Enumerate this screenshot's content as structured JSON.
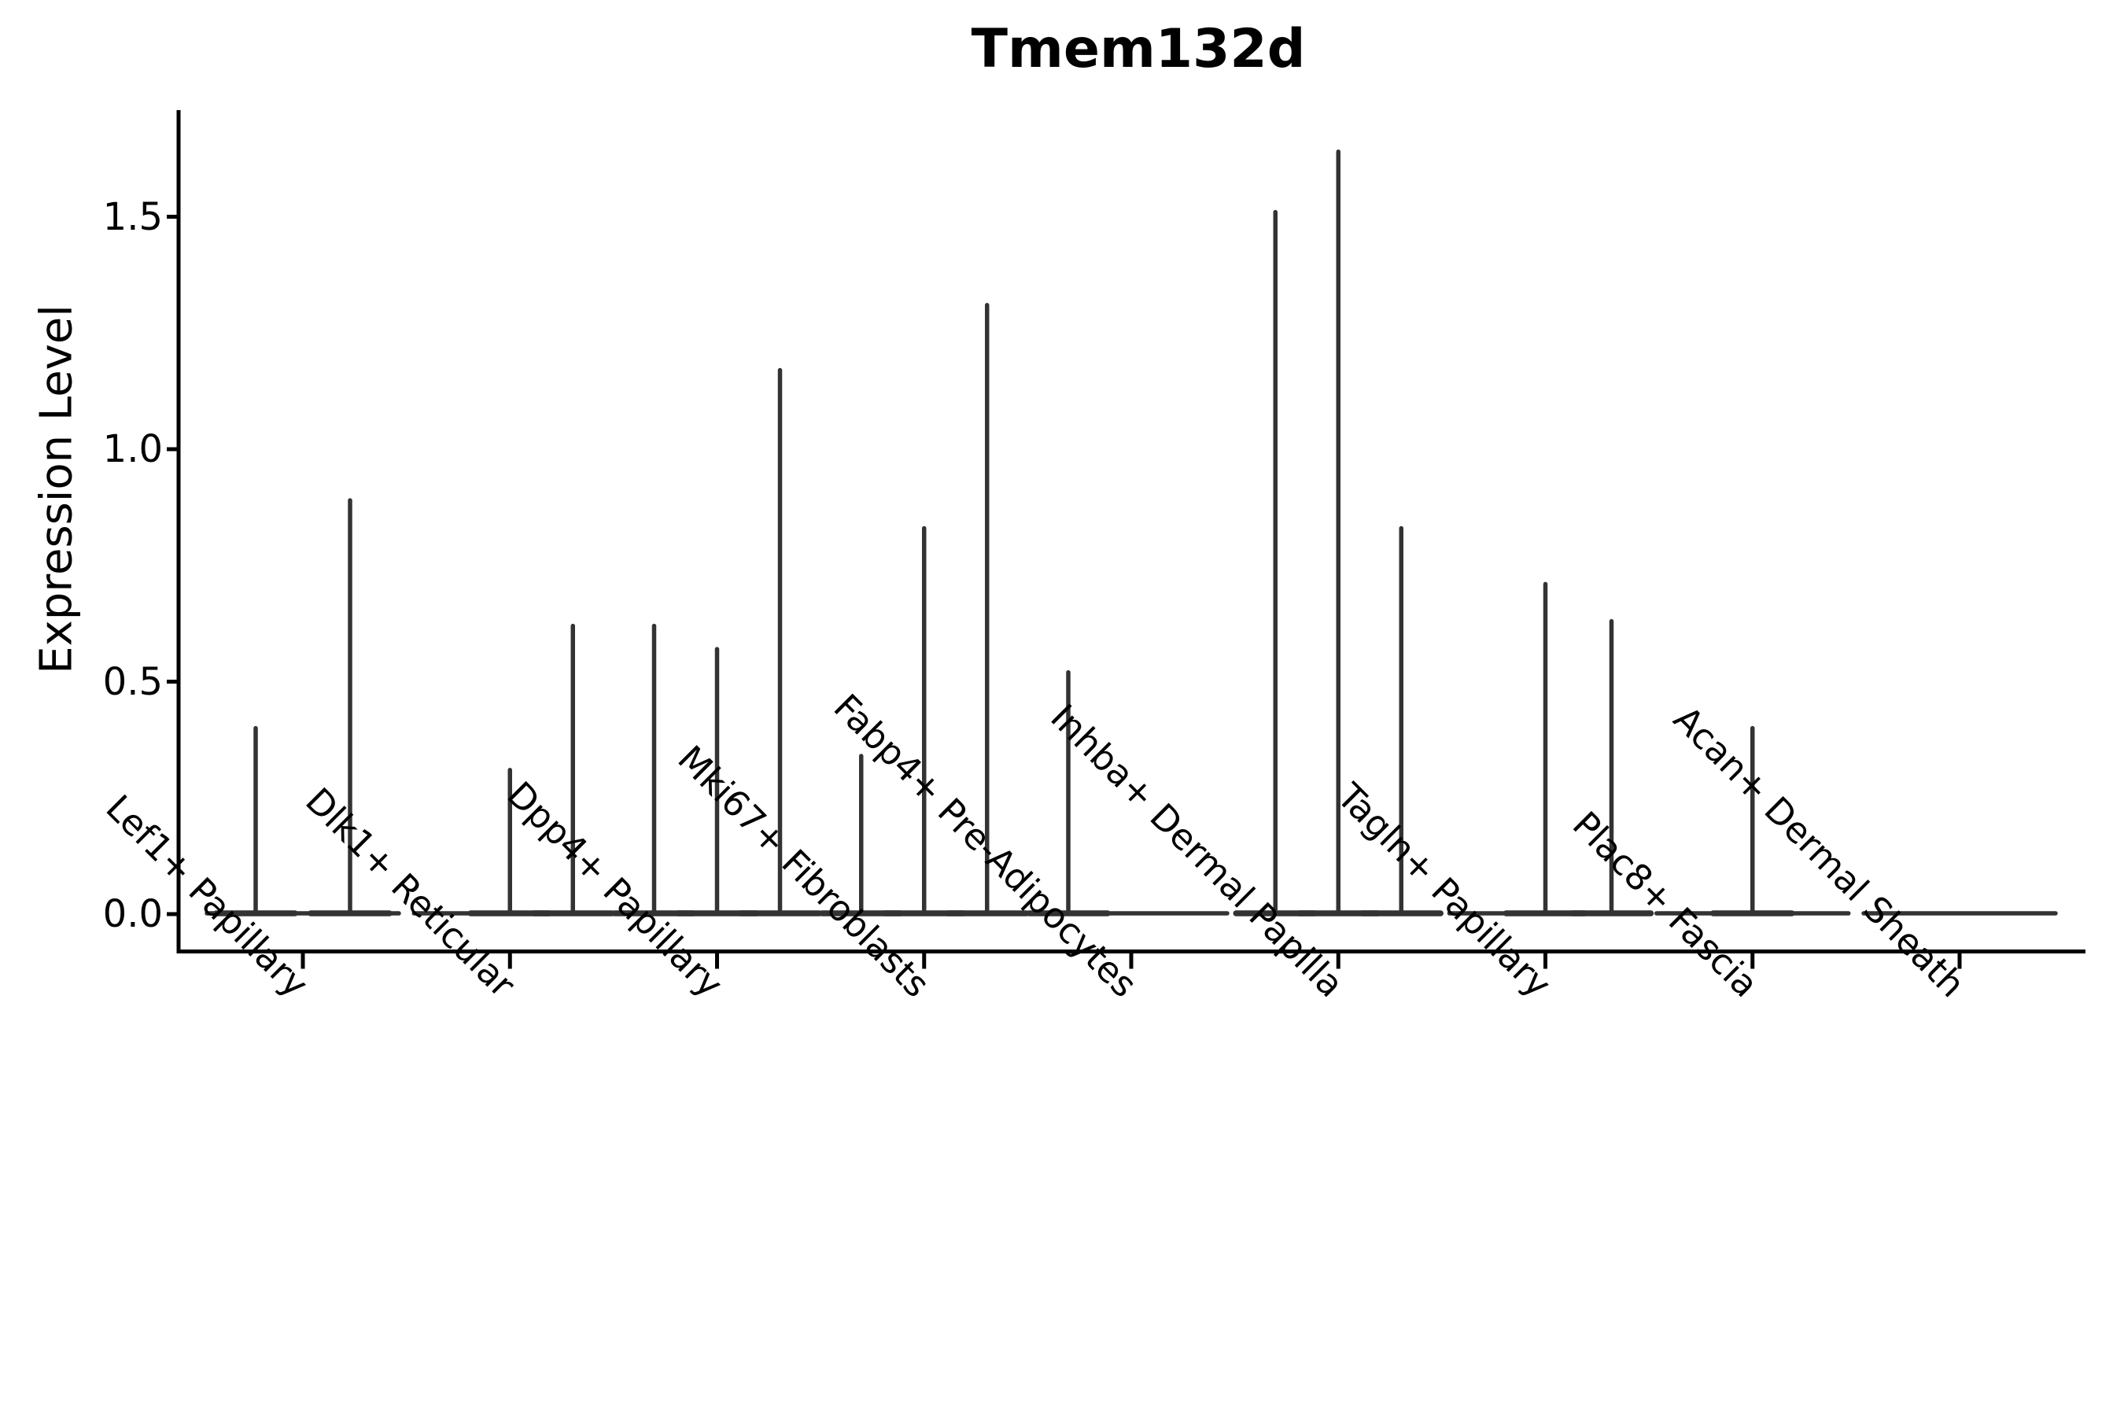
{
  "chart_data": {
    "type": "violin",
    "title": "Tmem132d",
    "ylabel": "Expression Level",
    "xlabel": "",
    "legend": null,
    "grid": false,
    "background_color": "#ffffff",
    "violin_color": "#333333",
    "axis_color": "#000000",
    "ylim": [
      0.0,
      1.73
    ],
    "yticks": [
      {
        "label": "0.0",
        "value": 0.0
      },
      {
        "label": "0.5",
        "value": 0.5
      },
      {
        "label": "1.0",
        "value": 1.0
      },
      {
        "label": "1.5",
        "value": 1.5
      }
    ],
    "x_axis_note": "9 cell-type categories; each contains 1-3 collapsed sub-violins (flat base at 0 with a thin spike to the group max expression)",
    "categories": [
      {
        "label": "Lef1+ Papillary",
        "violins": [
          {
            "offset": -60,
            "max": 0.4
          },
          {
            "offset": 60,
            "max": 0.89
          }
        ]
      },
      {
        "label": "Dlk1+ Reticular",
        "violins": [
          {
            "offset": 0,
            "max": 0.31
          },
          {
            "offset": 80,
            "max": 0.62
          }
        ]
      },
      {
        "label": "Dpp4+ Papillary",
        "violins": [
          {
            "offset": -80,
            "max": 0.62
          },
          {
            "offset": 0,
            "max": 0.57
          },
          {
            "offset": 80,
            "max": 1.17
          }
        ]
      },
      {
        "label": "Mki67+ Fibroblasts",
        "violins": [
          {
            "offset": -80,
            "max": 0.34
          },
          {
            "offset": 0,
            "max": 0.83
          },
          {
            "offset": 80,
            "max": 1.31
          }
        ]
      },
      {
        "label": "Fabp4+ Pre-Adipocytes",
        "violins": [
          {
            "offset": -80,
            "max": 0.52
          }
        ]
      },
      {
        "label": "Inhba+ Dermal Papilla",
        "violins": [
          {
            "offset": -80,
            "max": 1.51
          },
          {
            "offset": 0,
            "max": 1.64
          },
          {
            "offset": 80,
            "max": 0.83
          }
        ]
      },
      {
        "label": "Tagln+ Papillary",
        "violins": [
          {
            "offset": 0,
            "max": 0.71
          },
          {
            "offset": 84,
            "max": 0.63
          }
        ]
      },
      {
        "label": "Plac8+ Fascia",
        "violins": [
          {
            "offset": 0,
            "max": 0.4
          }
        ]
      },
      {
        "label": "Acan+ Dermal Sheath",
        "violins": []
      }
    ]
  }
}
